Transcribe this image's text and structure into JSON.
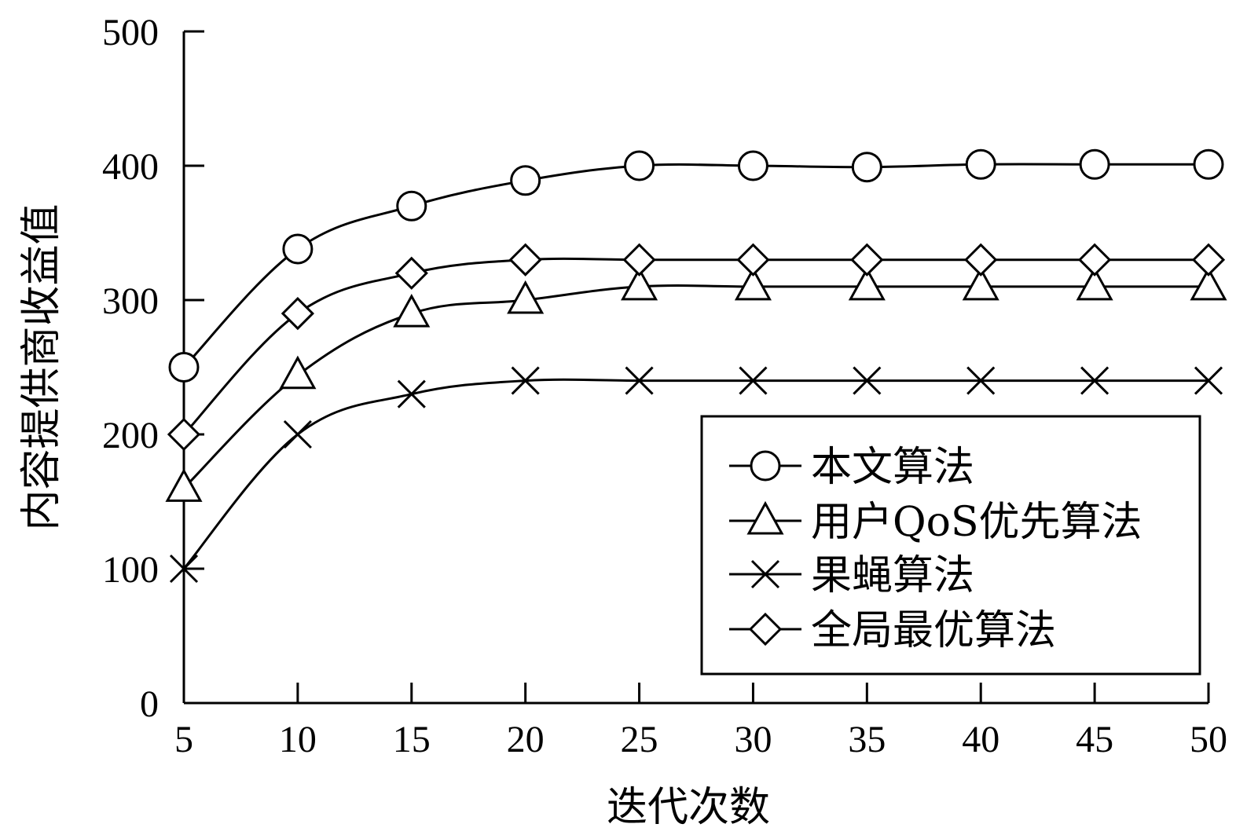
{
  "chart_data": {
    "type": "line",
    "title": "",
    "xlabel": "迭代次数",
    "ylabel": "内容提供商收益值",
    "x": [
      5,
      10,
      15,
      20,
      25,
      30,
      35,
      40,
      45,
      50
    ],
    "xlim": [
      5,
      50
    ],
    "ylim": [
      0,
      500
    ],
    "xticks": [
      "5",
      "10",
      "15",
      "20",
      "25",
      "30",
      "35",
      "40",
      "45",
      "50"
    ],
    "yticks": [
      "0",
      "100",
      "200",
      "300",
      "400",
      "500"
    ],
    "grid": false,
    "legend_position": "bottom-right",
    "series": [
      {
        "name": "本文算法",
        "marker": "circle",
        "color": "#000000",
        "values": [
          250,
          338,
          370,
          389,
          400,
          400,
          399,
          401,
          401,
          401
        ]
      },
      {
        "name": "用户QoS优先算法",
        "marker": "triangle",
        "color": "#000000",
        "values": [
          160,
          244,
          290,
          300,
          310,
          310,
          310,
          310,
          310,
          310
        ]
      },
      {
        "name": "果蝇算法",
        "marker": "x",
        "color": "#000000",
        "values": [
          100,
          200,
          230,
          240,
          240,
          240,
          240,
          240,
          240,
          240
        ]
      },
      {
        "name": "全局最优算法",
        "marker": "diamond",
        "color": "#000000",
        "values": [
          200,
          290,
          320,
          330,
          330,
          330,
          330,
          330,
          330,
          330
        ]
      }
    ]
  }
}
